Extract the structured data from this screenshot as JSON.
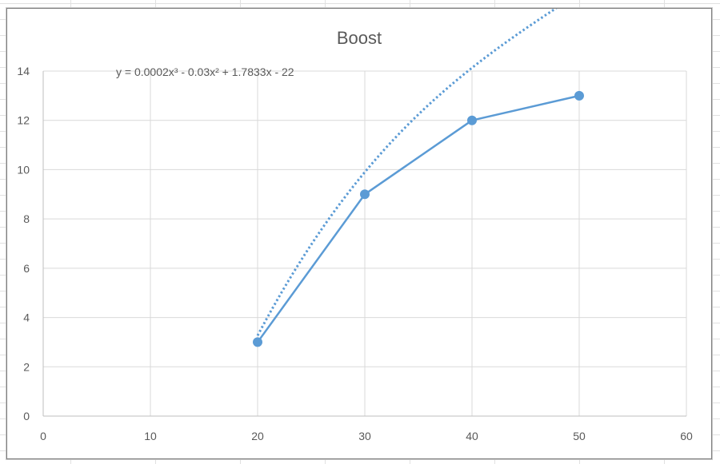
{
  "chart_data": {
    "type": "scatter",
    "title": "Boost",
    "xlabel": "",
    "ylabel": "",
    "xlim": [
      0,
      60
    ],
    "ylim": [
      0,
      14
    ],
    "x_ticks": [
      0,
      10,
      20,
      30,
      40,
      50,
      60
    ],
    "y_ticks": [
      0,
      2,
      4,
      6,
      8,
      10,
      12,
      14
    ],
    "grid": true,
    "legend": "none",
    "series": [
      {
        "x": [
          20,
          30,
          40,
          50
        ],
        "y": [
          3,
          9,
          12,
          13
        ],
        "color": "#5b9bd5",
        "style": "line-with-markers"
      }
    ],
    "trendline": {
      "kind": "polynomial",
      "order": 3,
      "equation": "y = 0.0002x³ - 0.03x² + 1.7833x - 22",
      "coefficients": [
        0.0002,
        -0.03,
        1.7833,
        -22
      ],
      "x_range": [
        20,
        50
      ],
      "color": "#5b9bd5",
      "style": "dotted"
    }
  }
}
